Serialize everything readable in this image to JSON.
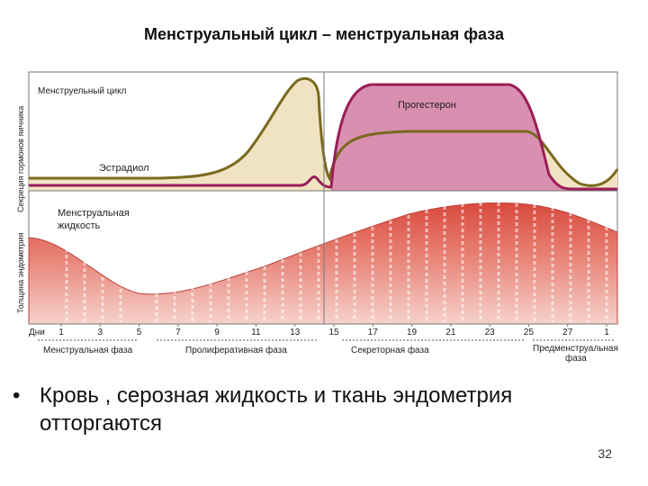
{
  "title": "Менструальный цикл – менструальная фаза",
  "figure": {
    "hormone_axis_label": "Секреция гормонов яичника",
    "endometrium_axis_label": "Толщина эндометрия",
    "cycle_label": "Менструельный цикл",
    "estradiol_label": "Эстрадиол",
    "progesterone_label": "Прогестерон",
    "menstrual_fluid_label_1": "Менструальная",
    "menstrual_fluid_label_2": "жидкость",
    "days_label": "Дни",
    "days": [
      "1",
      "3",
      "5",
      "7",
      "9",
      "11",
      "13",
      "15",
      "17",
      "19",
      "21",
      "23",
      "25",
      "27",
      "1"
    ],
    "phases": {
      "menstrual": "Менструальная фаза",
      "proliferative": "Пролиферативная фаза",
      "secretory": "Секреторная фаза",
      "premenstrual_1": "Предменструальная",
      "premenstrual_2": "фаза"
    },
    "colors": {
      "estradiol_fill": "#f0e3c2",
      "estradiol_line": "#7a6a1e",
      "progesterone_fill": "#d98fb0",
      "progesterone_line": "#9a1e58",
      "endometrium": "#e2655a"
    }
  },
  "bullet": {
    "line1": "Кровь , серозная жидкость и ткань эндометрия",
    "line2": "отторгаются"
  },
  "page_number": "32"
}
